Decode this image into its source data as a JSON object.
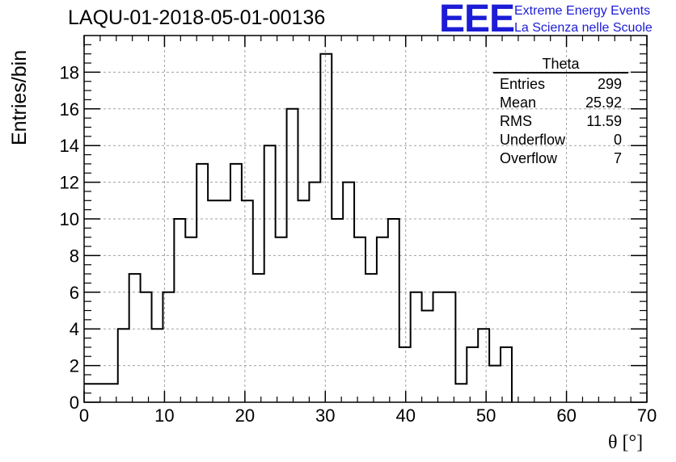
{
  "header": {
    "title": "LAQU-01-2018-05-01-00136",
    "brand_mark": "EEE",
    "brand_line1": "Extreme Energy Events",
    "brand_line2": "La Scienza nelle Scuole"
  },
  "stats_box": {
    "name": "Theta",
    "rows": [
      {
        "label": "Entries",
        "value": "299"
      },
      {
        "label": "Mean",
        "value": "25.92"
      },
      {
        "label": "RMS",
        "value": "11.59"
      },
      {
        "label": "Underflow",
        "value": "0"
      },
      {
        "label": "Overflow",
        "value": "7"
      }
    ]
  },
  "chart_data": {
    "type": "histogram",
    "xlabel": "θ [°]",
    "ylabel": "Entries/bin",
    "xlim": [
      0,
      70
    ],
    "ylim": [
      0,
      20
    ],
    "grid": true,
    "x_ticks": [
      0,
      10,
      20,
      30,
      40,
      50,
      60,
      70
    ],
    "y_ticks": [
      0,
      2,
      4,
      6,
      8,
      10,
      12,
      14,
      16,
      18
    ],
    "bin_edges": [
      0,
      1.4,
      2.8,
      4.2,
      5.6,
      7.0,
      8.4,
      9.8,
      11.2,
      12.6,
      14.0,
      15.4,
      16.8,
      18.2,
      19.6,
      21.0,
      22.4,
      23.8,
      25.2,
      26.6,
      28.0,
      29.4,
      30.8,
      32.2,
      33.6,
      35.0,
      36.4,
      37.8,
      39.2,
      40.6,
      42.0,
      43.4,
      44.8,
      46.2,
      47.6,
      49.0,
      50.4,
      51.8,
      53.2
    ],
    "counts": [
      1,
      1,
      1,
      4,
      7,
      6,
      4,
      6,
      10,
      9,
      13,
      11,
      11,
      13,
      11,
      7,
      14,
      9,
      16,
      11,
      12,
      19,
      10,
      12,
      9,
      7,
      9,
      10,
      3,
      6,
      5,
      6,
      6,
      1,
      3,
      4,
      2,
      3
    ]
  }
}
